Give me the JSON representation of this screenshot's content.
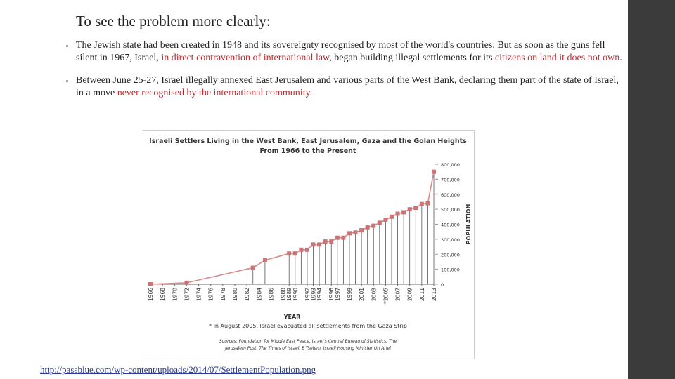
{
  "slide_title": "To see the problem more clearly:",
  "bullets": [
    {
      "segments": [
        {
          "text": "The Jewish state had been created in 1948 and its sovereignty recognised by most of the world's countries. But as soon as the guns fell silent in 1967, Israel, ",
          "emphasis": false
        },
        {
          "text": "in direct contravention of international law",
          "emphasis": true
        },
        {
          "text": ", began building illegal settlements for its ",
          "emphasis": false
        },
        {
          "text": "citizens on land it does not own",
          "emphasis": true
        },
        {
          "text": ".",
          "emphasis": false
        }
      ]
    },
    {
      "segments": [
        {
          "text": "Between June 25-27, Israel illegally annexed East Jerusalem and various parts of the West Bank, declaring them part of the state of Israel, in a move ",
          "emphasis": false
        },
        {
          "text": "never recognised by the international community",
          "emphasis": true
        },
        {
          "text": ".",
          "emphasis": false
        }
      ]
    }
  ],
  "source_link": "http://passblue.com/wp-content/uploads/2014/07/SettlementPopulation.png",
  "chart_data": {
    "type": "line",
    "title": "Israeli Settlers Living in the West Bank, East Jerusalem, Gaza and the Golan Heights",
    "subtitle": "From 1966 to the Present",
    "x_label": "YEAR",
    "y_label": "POPULATION",
    "note": "* In August 2005, Israel evacuated all settlements from the Gaza Strip",
    "sources": [
      "Sources: Foundation for Middle East Peace, Israel's Central Bureau of Statistics, The",
      "Jerusalem Post, The Times of Israel, B'Tselem, Israeli Housing Minister Uri Ariel"
    ],
    "color": "#d98a8c",
    "marker_color": "#c97476",
    "x": [
      1966,
      1972,
      1983,
      1985,
      1989,
      1990,
      1991,
      1992,
      1993,
      1994,
      1995,
      1996,
      1997,
      1998,
      1999,
      2000,
      2001,
      2002,
      2003,
      2004,
      2005,
      2006,
      2007,
      2008,
      2009,
      2010,
      2011,
      2012,
      2013
    ],
    "values": [
      0,
      10000,
      110000,
      160000,
      205000,
      205000,
      230000,
      230000,
      265000,
      265000,
      285000,
      285000,
      310000,
      310000,
      340000,
      345000,
      360000,
      380000,
      390000,
      410000,
      430000,
      450000,
      470000,
      480000,
      500000,
      510000,
      535000,
      540000,
      750000
    ],
    "xlim": [
      1966,
      2013
    ],
    "xticks": [
      1966,
      1968,
      1970,
      1972,
      1974,
      1976,
      1978,
      1980,
      1982,
      1984,
      1986,
      1988,
      1989,
      1990,
      1992,
      1993,
      1994,
      1996,
      1997,
      1999,
      2001,
      2003,
      {
        "value": 2005,
        "label": "*2005"
      },
      2007,
      2009,
      2011,
      2013
    ],
    "ylim": [
      0,
      800000
    ],
    "yticks": [
      0,
      {
        "value": 100000,
        "label": "100,000"
      },
      {
        "value": 200000,
        "label": "200,000"
      },
      {
        "value": 300000,
        "label": "300,000"
      },
      {
        "value": 400000,
        "label": "400,000"
      },
      {
        "value": 500000,
        "label": "500,000"
      },
      {
        "value": 600000,
        "label": "600,000"
      },
      {
        "value": 700000,
        "label": "700,000"
      },
      {
        "value": 800000,
        "label": "800,000"
      }
    ],
    "grid": false
  }
}
